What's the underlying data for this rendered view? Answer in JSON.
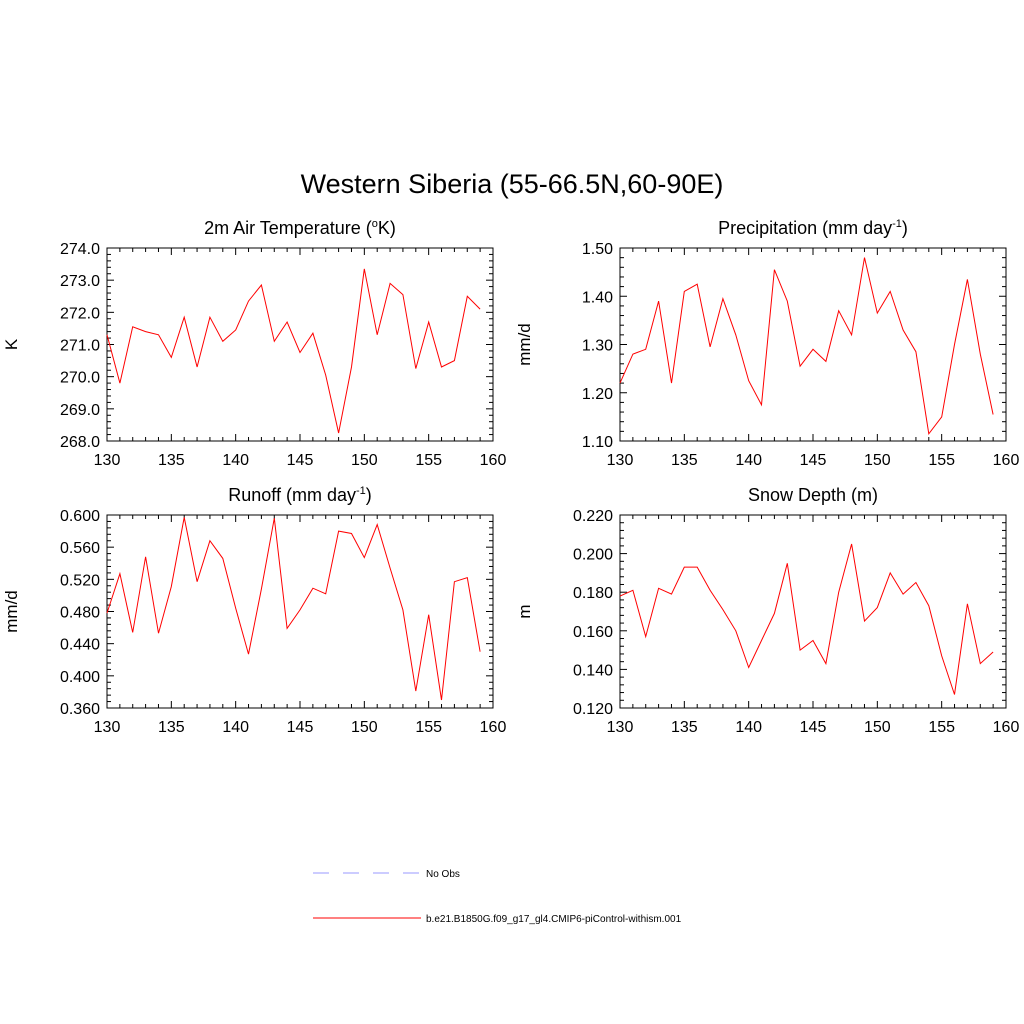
{
  "title": "Western Siberia (55-66.5N,60-90E)",
  "colors": {
    "model": "#ff0000",
    "obs": "#9999ff"
  },
  "chart_data": [
    {
      "type": "line",
      "title": "2m Air Temperature (",
      "title_sup": "o",
      "title_tail": "K)",
      "ylabel": "K",
      "xlim": [
        130,
        160
      ],
      "ylim": [
        268.0,
        274.0
      ],
      "xticks": [
        "130",
        "135",
        "140",
        "145",
        "150",
        "155",
        "160"
      ],
      "yticks": [
        "268.0",
        "269.0",
        "270.0",
        "271.0",
        "272.0",
        "273.0",
        "274.0"
      ],
      "x": [
        130,
        131,
        132,
        133,
        134,
        135,
        136,
        137,
        138,
        139,
        140,
        141,
        142,
        143,
        144,
        145,
        146,
        147,
        148,
        149,
        150,
        151,
        152,
        153,
        154,
        155,
        156,
        157,
        158,
        159
      ],
      "series": [
        {
          "name": "b.e21.B1850G.f09_g17_gl4.CMIP6-piControl-withism.001",
          "values": [
            271.3,
            269.8,
            271.55,
            271.4,
            271.3,
            270.6,
            271.85,
            270.3,
            271.85,
            271.1,
            271.45,
            272.35,
            272.85,
            271.1,
            271.7,
            270.75,
            271.35,
            270.05,
            268.25,
            270.3,
            273.35,
            271.3,
            272.9,
            272.55,
            270.25,
            271.7,
            270.3,
            270.5,
            272.5,
            272.1
          ]
        }
      ]
    },
    {
      "type": "line",
      "title": "Precipitation (mm day",
      "title_sup": "-1",
      "title_tail": ")",
      "ylabel": "mm/d",
      "xlim": [
        130,
        160
      ],
      "ylim": [
        1.1,
        1.5
      ],
      "xticks": [
        "130",
        "135",
        "140",
        "145",
        "150",
        "155",
        "160"
      ],
      "yticks": [
        "1.10",
        "1.20",
        "1.30",
        "1.40",
        "1.50"
      ],
      "x": [
        130,
        131,
        132,
        133,
        134,
        135,
        136,
        137,
        138,
        139,
        140,
        141,
        142,
        143,
        144,
        145,
        146,
        147,
        148,
        149,
        150,
        151,
        152,
        153,
        154,
        155,
        156,
        157,
        158,
        159
      ],
      "series": [
        {
          "name": "b.e21.B1850G.f09_g17_gl4.CMIP6-piControl-withism.001",
          "values": [
            1.22,
            1.28,
            1.29,
            1.39,
            1.22,
            1.41,
            1.425,
            1.295,
            1.395,
            1.32,
            1.225,
            1.175,
            1.455,
            1.39,
            1.255,
            1.29,
            1.265,
            1.37,
            1.32,
            1.48,
            1.365,
            1.41,
            1.33,
            1.285,
            1.115,
            1.15,
            1.3,
            1.435,
            1.28,
            1.155
          ]
        }
      ]
    },
    {
      "type": "line",
      "title": "Runoff (mm day",
      "title_sup": "-1",
      "title_tail": ")",
      "ylabel": "mm/d",
      "xlim": [
        130,
        160
      ],
      "ylim": [
        0.36,
        0.6
      ],
      "xticks": [
        "130",
        "135",
        "140",
        "145",
        "150",
        "155",
        "160"
      ],
      "yticks": [
        "0.360",
        "0.400",
        "0.440",
        "0.480",
        "0.520",
        "0.560",
        "0.600"
      ],
      "x": [
        130,
        131,
        132,
        133,
        134,
        135,
        136,
        137,
        138,
        139,
        140,
        141,
        142,
        143,
        144,
        145,
        146,
        147,
        148,
        149,
        150,
        151,
        152,
        153,
        154,
        155,
        156,
        157,
        158,
        159
      ],
      "series": [
        {
          "name": "b.e21.B1850G.f09_g17_gl4.CMIP6-piControl-withism.001",
          "values": [
            0.478,
            0.527,
            0.454,
            0.548,
            0.453,
            0.511,
            0.597,
            0.517,
            0.568,
            0.546,
            0.484,
            0.427,
            0.508,
            0.596,
            0.459,
            0.482,
            0.509,
            0.502,
            0.58,
            0.577,
            0.547,
            0.588,
            0.534,
            0.482,
            0.381,
            0.476,
            0.37,
            0.517,
            0.522,
            0.43
          ]
        }
      ]
    },
    {
      "type": "line",
      "title": "Snow Depth (m)",
      "title_sup": "",
      "title_tail": "",
      "ylabel": "m",
      "xlim": [
        130,
        160
      ],
      "ylim": [
        0.12,
        0.22
      ],
      "xticks": [
        "130",
        "135",
        "140",
        "145",
        "150",
        "155",
        "160"
      ],
      "yticks": [
        "0.120",
        "0.140",
        "0.160",
        "0.180",
        "0.200",
        "0.220"
      ],
      "x": [
        130,
        131,
        132,
        133,
        134,
        135,
        136,
        137,
        138,
        139,
        140,
        141,
        142,
        143,
        144,
        145,
        146,
        147,
        148,
        149,
        150,
        151,
        152,
        153,
        154,
        155,
        156,
        157,
        158,
        159
      ],
      "series": [
        {
          "name": "b.e21.B1850G.f09_g17_gl4.CMIP6-piControl-withism.001",
          "values": [
            0.178,
            0.181,
            0.157,
            0.182,
            0.179,
            0.193,
            0.193,
            0.181,
            0.171,
            0.16,
            0.141,
            0.155,
            0.169,
            0.195,
            0.15,
            0.155,
            0.143,
            0.18,
            0.205,
            0.165,
            0.172,
            0.19,
            0.179,
            0.185,
            0.173,
            0.147,
            0.127,
            0.174,
            0.143,
            0.149
          ]
        }
      ]
    }
  ],
  "legend": {
    "items": [
      {
        "label": "No Obs",
        "style": "dashed",
        "color": "#9999ff"
      },
      {
        "label": "b.e21.B1850G.f09_g17_gl4.CMIP6-piControl-withism.001",
        "style": "solid",
        "color": "#ff0000"
      }
    ]
  }
}
